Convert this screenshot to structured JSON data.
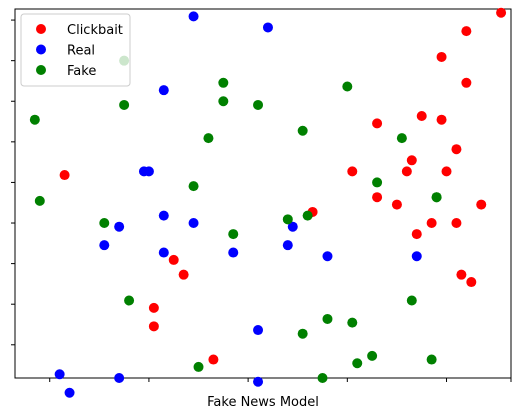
{
  "chart_data": {
    "type": "scatter",
    "title": "",
    "xlabel": "Fake News Model",
    "ylabel": "",
    "xlim": [
      0.0,
      1.0
    ],
    "ylim": [
      0.0,
      1.0
    ],
    "x_ticks": [
      0.07,
      0.27,
      0.47,
      0.67,
      0.87,
      1.0
    ],
    "y_ticks": [
      0.09,
      0.2,
      0.31,
      0.42,
      0.53,
      0.64,
      0.75,
      0.86,
      0.97
    ],
    "grid": false,
    "legend_position": "top-left",
    "series": [
      {
        "name": "Clickbait",
        "color": "#ff0000",
        "points": [
          [
            0.98,
            0.99
          ],
          [
            0.91,
            0.94
          ],
          [
            0.86,
            0.87
          ],
          [
            0.91,
            0.8
          ],
          [
            0.73,
            0.69
          ],
          [
            0.82,
            0.71
          ],
          [
            0.86,
            0.7
          ],
          [
            0.89,
            0.62
          ],
          [
            0.8,
            0.59
          ],
          [
            0.87,
            0.56
          ],
          [
            0.68,
            0.56
          ],
          [
            0.79,
            0.56
          ],
          [
            1.03,
            0.54
          ],
          [
            0.73,
            0.49
          ],
          [
            0.77,
            0.47
          ],
          [
            0.94,
            0.47
          ],
          [
            0.6,
            0.45
          ],
          [
            0.84,
            0.42
          ],
          [
            0.89,
            0.42
          ],
          [
            1.04,
            0.43
          ],
          [
            0.81,
            0.39
          ],
          [
            0.32,
            0.32
          ],
          [
            0.34,
            0.28
          ],
          [
            0.9,
            0.28
          ],
          [
            0.92,
            0.26
          ],
          [
            0.28,
            0.19
          ],
          [
            0.28,
            0.14
          ],
          [
            0.4,
            0.05
          ],
          [
            0.1,
            0.55
          ]
        ]
      },
      {
        "name": "Real",
        "color": "#0000ff",
        "points": [
          [
            0.36,
            0.98
          ],
          [
            0.51,
            0.95
          ],
          [
            0.3,
            0.78
          ],
          [
            0.26,
            0.56
          ],
          [
            0.27,
            0.56
          ],
          [
            0.21,
            0.41
          ],
          [
            0.3,
            0.44
          ],
          [
            0.36,
            0.42
          ],
          [
            0.18,
            0.36
          ],
          [
            0.3,
            0.34
          ],
          [
            0.44,
            0.34
          ],
          [
            0.56,
            0.41
          ],
          [
            0.55,
            0.36
          ],
          [
            0.63,
            0.33
          ],
          [
            0.81,
            0.33
          ],
          [
            0.49,
            0.13
          ],
          [
            0.09,
            0.01
          ],
          [
            0.11,
            -0.04
          ],
          [
            0.21,
            0.0
          ],
          [
            0.49,
            -0.01
          ]
        ]
      },
      {
        "name": "Fake",
        "color": "#008000",
        "points": [
          [
            0.22,
            0.86
          ],
          [
            0.42,
            0.8
          ],
          [
            0.22,
            0.74
          ],
          [
            0.42,
            0.75
          ],
          [
            0.49,
            0.74
          ],
          [
            0.67,
            0.79
          ],
          [
            0.04,
            0.7
          ],
          [
            0.58,
            0.67
          ],
          [
            0.39,
            0.65
          ],
          [
            0.78,
            0.65
          ],
          [
            0.36,
            0.52
          ],
          [
            0.73,
            0.53
          ],
          [
            0.85,
            0.49
          ],
          [
            0.85,
            0.49
          ],
          [
            0.05,
            0.48
          ],
          [
            0.18,
            0.42
          ],
          [
            0.59,
            0.44
          ],
          [
            0.55,
            0.43
          ],
          [
            0.44,
            0.39
          ],
          [
            0.23,
            0.21
          ],
          [
            0.8,
            0.21
          ],
          [
            0.63,
            0.16
          ],
          [
            0.68,
            0.15
          ],
          [
            0.58,
            0.12
          ],
          [
            0.72,
            0.06
          ],
          [
            0.84,
            0.05
          ],
          [
            0.69,
            0.04
          ],
          [
            0.37,
            0.03
          ],
          [
            0.62,
            0.0
          ]
        ]
      }
    ]
  }
}
